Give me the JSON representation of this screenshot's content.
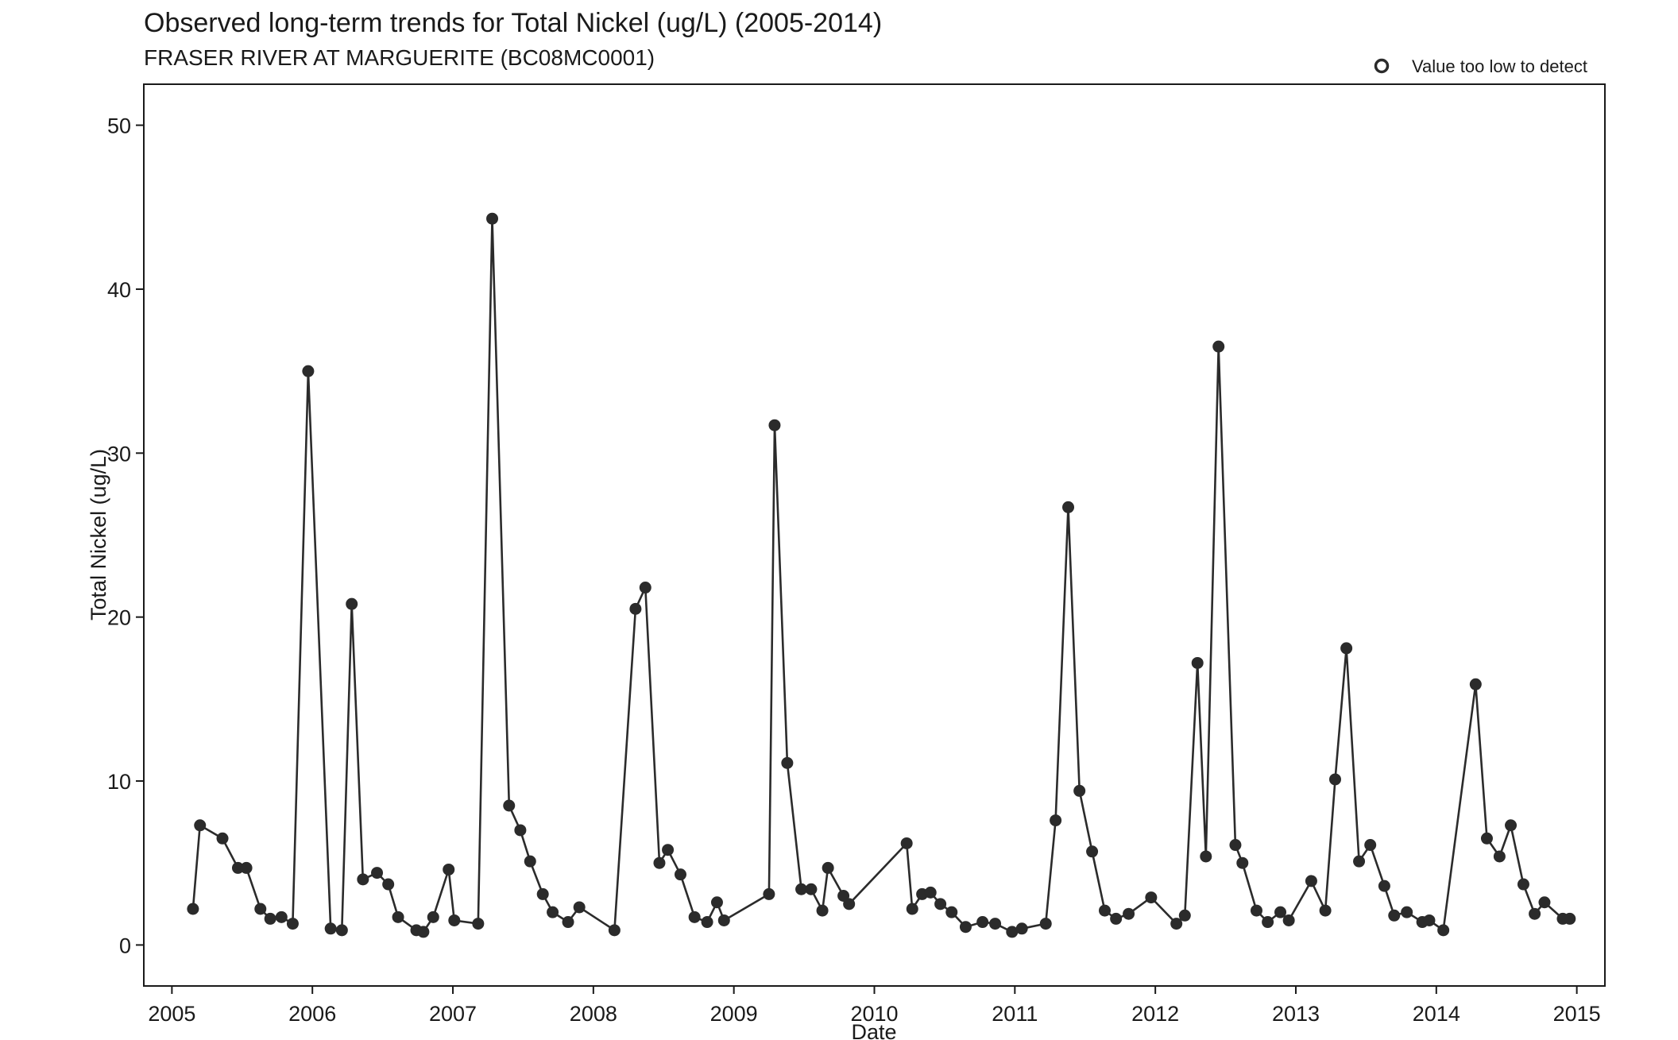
{
  "chart_data": {
    "type": "line",
    "title": "Observed long-term trends for Total Nickel (ug/L) (2005-2014)",
    "subtitle": "FRASER RIVER AT MARGUERITE (BC08MC0001)",
    "xlabel": "Date",
    "ylabel": "Total Nickel (ug/L)",
    "xlim": [
      2004.8,
      2015.2
    ],
    "ylim": [
      -2.5,
      52.5
    ],
    "x_ticks": [
      "2005",
      "2006",
      "2007",
      "2008",
      "2009",
      "2010",
      "2011",
      "2012",
      "2013",
      "2014",
      "2015"
    ],
    "y_ticks": [
      "0",
      "10",
      "20",
      "30",
      "40",
      "50"
    ],
    "legend": {
      "label": "Value too low to detect",
      "position": "top-right",
      "marker": "open-circle"
    },
    "grid": false,
    "series": [
      {
        "marker": "filled-circle",
        "color": "#2b2b2b",
        "x": [
          2005.15,
          2005.2,
          2005.36,
          2005.47,
          2005.53,
          2005.63,
          2005.7,
          2005.78,
          2005.86,
          2005.97,
          2006.13,
          2006.21,
          2006.28,
          2006.36,
          2006.46,
          2006.54,
          2006.61,
          2006.74,
          2006.79,
          2006.86,
          2006.97,
          2007.01,
          2007.18,
          2007.28,
          2007.4,
          2007.48,
          2007.55,
          2007.64,
          2007.71,
          2007.82,
          2007.9,
          2008.15,
          2008.3,
          2008.37,
          2008.47,
          2008.53,
          2008.62,
          2008.72,
          2008.81,
          2008.88,
          2008.93,
          2009.25,
          2009.29,
          2009.38,
          2009.48,
          2009.55,
          2009.63,
          2009.67,
          2009.78,
          2009.82,
          2010.23,
          2010.27,
          2010.34,
          2010.4,
          2010.47,
          2010.55,
          2010.65,
          2010.77,
          2010.86,
          2010.98,
          2011.05,
          2011.22,
          2011.29,
          2011.38,
          2011.46,
          2011.55,
          2011.64,
          2011.72,
          2011.81,
          2011.97,
          2012.15,
          2012.21,
          2012.3,
          2012.36,
          2012.45,
          2012.57,
          2012.62,
          2012.72,
          2012.8,
          2012.89,
          2012.95,
          2013.11,
          2013.21,
          2013.28,
          2013.36,
          2013.45,
          2013.53,
          2013.63,
          2013.7,
          2013.79,
          2013.9,
          2013.95,
          2014.05,
          2014.28,
          2014.36,
          2014.45,
          2014.53,
          2014.62,
          2014.7,
          2014.77,
          2014.9,
          2014.95
        ],
        "y": [
          2.2,
          7.3,
          6.5,
          4.7,
          4.7,
          2.2,
          1.6,
          1.7,
          1.3,
          35.0,
          1.0,
          0.9,
          20.8,
          4.0,
          4.4,
          3.7,
          1.7,
          0.9,
          0.8,
          1.7,
          4.6,
          1.5,
          1.3,
          44.3,
          8.5,
          7.0,
          5.1,
          3.1,
          2.0,
          1.4,
          2.3,
          0.9,
          20.5,
          21.8,
          5.0,
          5.8,
          4.3,
          1.7,
          1.4,
          2.6,
          1.5,
          3.1,
          31.7,
          11.1,
          3.4,
          3.4,
          2.1,
          4.7,
          3.0,
          2.5,
          6.2,
          2.2,
          3.1,
          3.2,
          2.5,
          2.0,
          1.1,
          1.4,
          1.3,
          0.8,
          1.0,
          1.3,
          7.6,
          26.7,
          9.4,
          5.7,
          2.1,
          1.6,
          1.9,
          2.9,
          1.3,
          1.8,
          17.2,
          5.4,
          36.5,
          6.1,
          5.0,
          2.1,
          1.4,
          2.0,
          1.5,
          3.9,
          2.1,
          10.1,
          18.1,
          5.1,
          6.1,
          3.6,
          1.8,
          2.0,
          1.4,
          1.5,
          0.9,
          15.9,
          6.5,
          5.4,
          7.3,
          3.7,
          1.9,
          2.6,
          1.6,
          1.6
        ]
      }
    ]
  }
}
